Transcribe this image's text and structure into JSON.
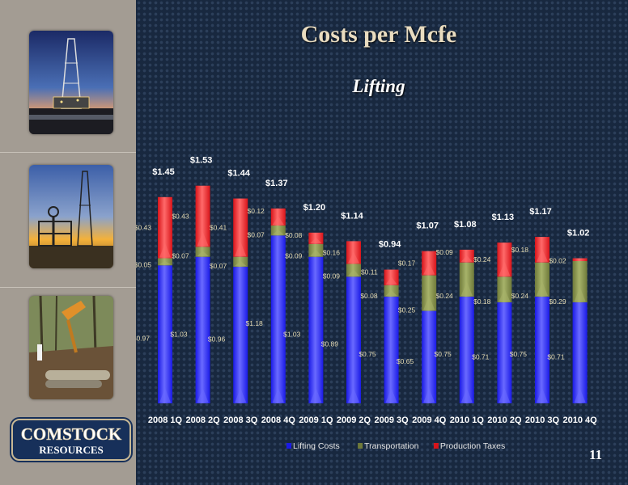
{
  "slide": {
    "title": "Costs per Mcfe",
    "subtitle": "Lifting",
    "page_number": "11",
    "logo_text": "COMSTOCK",
    "logo_subtext": "RESOURCES"
  },
  "colors": {
    "lifting": "#1a1ae6",
    "transportation": "#6f7a3a",
    "production_taxes": "#d8141a",
    "label": "#e6dcb4",
    "total_label": "#ffffff"
  },
  "chart_data": {
    "type": "bar",
    "stacked": true,
    "categories": [
      "2008 1Q",
      "2008 2Q",
      "2008 3Q",
      "2008 4Q",
      "2009 1Q",
      "2009 2Q",
      "2009 3Q",
      "2009 4Q",
      "2010 1Q",
      "2010 2Q",
      "2010 3Q",
      "2010 4Q"
    ],
    "series": [
      {
        "name": "Lifting Costs",
        "values": [
          0.97,
          1.03,
          0.96,
          1.18,
          1.03,
          0.89,
          0.75,
          0.65,
          0.75,
          0.71,
          0.75,
          0.71
        ],
        "labels": [
          "$0.97",
          "$1.03",
          "$0.96",
          "$1.18",
          "$1.03",
          "$0.89",
          "$0.75",
          "$0.65",
          "$0.75",
          "$0.71",
          "$0.75",
          "$0.71"
        ]
      },
      {
        "name": "Transportation",
        "values": [
          0.05,
          0.07,
          0.07,
          0.07,
          0.09,
          0.09,
          0.08,
          0.25,
          0.24,
          0.18,
          0.24,
          0.29
        ],
        "labels": [
          "$0.05",
          "$0.07",
          "$0.07",
          "$0.07",
          "$0.09",
          "$0.09",
          "$0.08",
          "$0.25",
          "$0.24",
          "$0.18",
          "$0.24",
          "$0.29"
        ]
      },
      {
        "name": "Production Taxes",
        "values": [
          0.43,
          0.43,
          0.41,
          0.12,
          0.08,
          0.16,
          0.11,
          0.17,
          0.09,
          0.24,
          0.18,
          0.02
        ],
        "labels": [
          "$0.43",
          "$0.43",
          "$0.41",
          "$0.12",
          "$0.08",
          "$0.16",
          "$0.11",
          "$0.17",
          "$0.09",
          "$0.24",
          "$0.18",
          "$0.02"
        ]
      }
    ],
    "totals": [
      1.45,
      1.53,
      1.44,
      1.37,
      1.2,
      1.14,
      0.94,
      1.07,
      1.08,
      1.13,
      1.17,
      1.02
    ],
    "total_labels": [
      "$1.45",
      "$1.53",
      "$1.44",
      "$1.37",
      "$1.20",
      "$1.14",
      "$0.94",
      "$1.07",
      "$1.08",
      "$1.13",
      "$1.17",
      "$1.02"
    ],
    "ylim": [
      0,
      1.65
    ],
    "grid": false,
    "legend_position": "bottom"
  }
}
